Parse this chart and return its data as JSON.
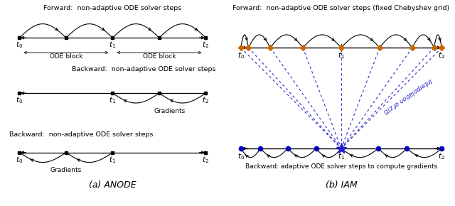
{
  "fig_width": 6.4,
  "fig_height": 2.9,
  "dpi": 100,
  "bg_color": "#ffffff",
  "left_title1": "Forward:  non-adaptive ODE solver steps",
  "left_title2": "Backward:  non-adaptive ODE solver steps",
  "left_title3": "Backward:  non-adaptive ODE solver steps",
  "left_caption": "(a) ANODE",
  "right_title1": "Forward:  non-adaptive ODE solver steps (fixed Chebyshev grid)",
  "right_title2": "Backward: adaptive ODE solver steps to compute gradients",
  "right_caption": "(b) IAM",
  "interp_label": "Interpolation of $z(t)$",
  "dc": "#222222",
  "orange_color": "#cc6600",
  "blue_dot_color": "#0000bb",
  "dashed_blue": "#2222cc"
}
